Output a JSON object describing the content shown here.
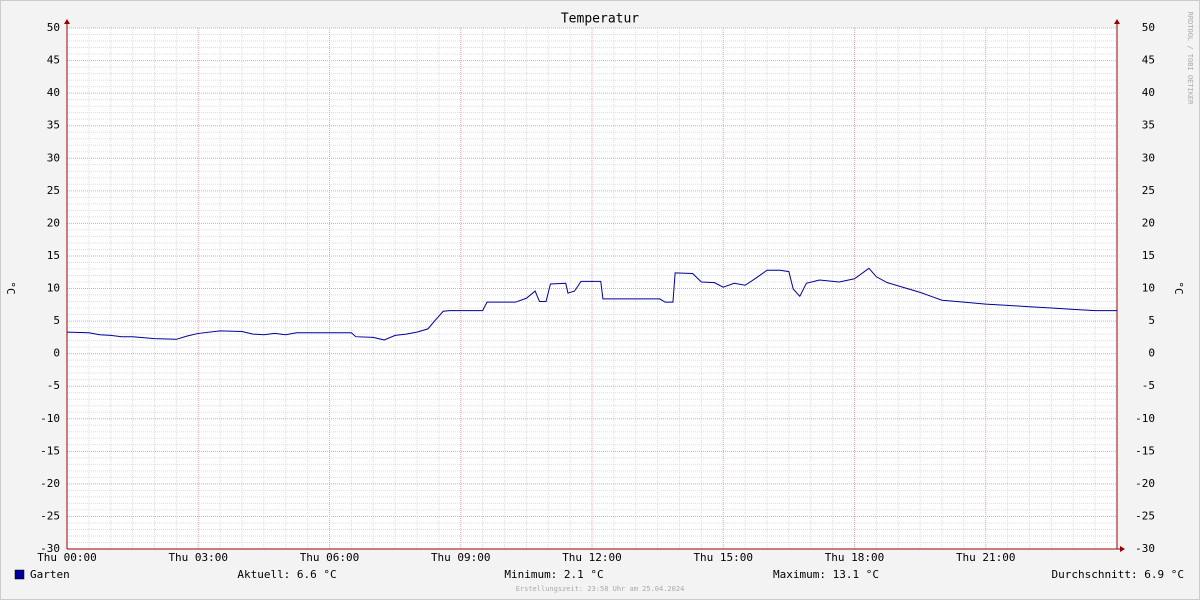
{
  "chart_data": {
    "type": "line",
    "title": "Temperatur",
    "y_label": "°C",
    "watermark": "RRDTOOL / TOBI OETIKER",
    "xlim": [
      0,
      24
    ],
    "xticks": [
      {
        "value": 0,
        "label": "Thu 00:00"
      },
      {
        "value": 3,
        "label": "Thu 03:00"
      },
      {
        "value": 6,
        "label": "Thu 06:00"
      },
      {
        "value": 9,
        "label": "Thu 09:00"
      },
      {
        "value": 12,
        "label": "Thu 12:00"
      },
      {
        "value": 15,
        "label": "Thu 15:00"
      },
      {
        "value": 18,
        "label": "Thu 18:00"
      },
      {
        "value": 21,
        "label": "Thu 21:00"
      }
    ],
    "ylim": [
      -30,
      50
    ],
    "yticks": [
      -30,
      -25,
      -20,
      -15,
      -10,
      -5,
      0,
      5,
      10,
      15,
      20,
      25,
      30,
      35,
      40,
      45,
      50
    ],
    "grid": true,
    "x": [
      0,
      0.5,
      0.75,
      1,
      1.25,
      1.5,
      2,
      2.5,
      2.75,
      3,
      3.5,
      4,
      4.25,
      4.5,
      4.75,
      5,
      5.25,
      6,
      6.5,
      6.6,
      7,
      7.25,
      7.5,
      7.75,
      8,
      8.25,
      8.4,
      8.6,
      8.75,
      9,
      9.5,
      9.6,
      10,
      10.25,
      10.5,
      10.7,
      10.8,
      10.95,
      11.05,
      11.4,
      11.45,
      11.6,
      11.75,
      12.2,
      12.25,
      13.55,
      13.67,
      13.85,
      13.9,
      14.3,
      14.5,
      14.8,
      15,
      15.25,
      15.5,
      15.75,
      16,
      16.3,
      16.5,
      16.6,
      16.75,
      16.9,
      17.2,
      17.65,
      18,
      18.33,
      18.5,
      18.75,
      19,
      19.25,
      19.5,
      19.75,
      20,
      20.5,
      21,
      21.5,
      22,
      22.5,
      23,
      23.5,
      24
    ],
    "series": [
      {
        "name": "Garten",
        "color": "#000099",
        "values": [
          3.3,
          3.2,
          2.9,
          2.8,
          2.6,
          2.6,
          2.3,
          2.2,
          2.7,
          3.1,
          3.5,
          3.4,
          3.0,
          2.9,
          3.1,
          2.9,
          3.2,
          3.2,
          3.2,
          2.6,
          2.5,
          2.1,
          2.8,
          3.0,
          3.3,
          3.8,
          5.0,
          6.5,
          6.6,
          6.6,
          6.6,
          7.9,
          7.9,
          7.9,
          8.5,
          9.6,
          8.0,
          8.0,
          10.7,
          10.8,
          9.3,
          9.6,
          11.1,
          11.1,
          8.4,
          8.4,
          7.9,
          7.9,
          12.4,
          12.3,
          11.0,
          10.9,
          10.2,
          10.8,
          10.5,
          11.6,
          12.8,
          12.8,
          12.6,
          9.9,
          8.8,
          10.8,
          11.3,
          11.0,
          11.5,
          13.1,
          11.8,
          10.9,
          10.4,
          9.9,
          9.4,
          8.8,
          8.2,
          7.9,
          7.6,
          7.4,
          7.2,
          7.0,
          6.8,
          6.6,
          6.6
        ]
      }
    ],
    "stats": [
      "Aktuell: 6.6 °C",
      "Minimum: 2.1 °C",
      "Maximum: 13.1 °C",
      "Durchschnitt: 6.9 °C"
    ],
    "footer": "Erstellungszeit: 23:58 Uhr am 25.04.2024"
  }
}
